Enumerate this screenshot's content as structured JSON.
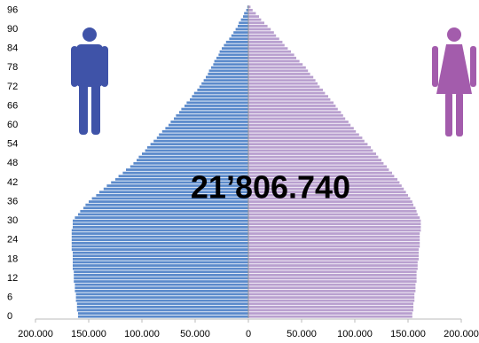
{
  "chart_data": {
    "type": "pyramid",
    "annotation": "21’806.740",
    "categories": [
      "0",
      null,
      null,
      null,
      null,
      null,
      "6",
      null,
      null,
      null,
      null,
      null,
      "12",
      null,
      null,
      null,
      null,
      null,
      "18",
      null,
      null,
      null,
      null,
      null,
      "24",
      null,
      null,
      null,
      null,
      null,
      "30",
      null,
      null,
      null,
      null,
      null,
      "36",
      null,
      null,
      null,
      null,
      null,
      "42",
      null,
      null,
      null,
      null,
      null,
      "48",
      null,
      null,
      null,
      null,
      null,
      "54",
      null,
      null,
      null,
      null,
      null,
      "60",
      null,
      null,
      null,
      null,
      null,
      "66",
      null,
      null,
      null,
      null,
      null,
      "72",
      null,
      null,
      null,
      null,
      null,
      "78",
      null,
      null,
      null,
      null,
      null,
      "84",
      null,
      null,
      null,
      null,
      null,
      "90",
      null,
      null,
      null,
      null,
      null,
      "96",
      null
    ],
    "series": [
      {
        "side": "left",
        "color": "#5b8acb",
        "values": [
          160000,
          160000,
          161000,
          161000,
          161000,
          162000,
          162000,
          162000,
          163000,
          163000,
          163000,
          164000,
          164000,
          164000,
          164000,
          165000,
          165000,
          165000,
          165000,
          165000,
          165000,
          166000,
          166000,
          166000,
          166000,
          166000,
          166000,
          166000,
          165000,
          165000,
          165000,
          163000,
          160000,
          158000,
          155000,
          153000,
          150000,
          147000,
          143000,
          140000,
          136000,
          133000,
          129000,
          125000,
          122000,
          118000,
          115000,
          111000,
          108000,
          105000,
          103000,
          100000,
          97000,
          95000,
          92000,
          89000,
          86000,
          84000,
          81000,
          78000,
          75000,
          73000,
          70000,
          68000,
          65000,
          63000,
          60000,
          58000,
          55000,
          53000,
          51000,
          48000,
          46000,
          44000,
          42000,
          40000,
          38000,
          37000,
          35000,
          33000,
          32000,
          30000,
          28000,
          27000,
          25000,
          23000,
          21000,
          18000,
          16000,
          14000,
          12000,
          10000,
          9000,
          7000,
          5000,
          4000,
          2000,
          1000
        ]
      },
      {
        "side": "right",
        "color": "#b9a0cf",
        "values": [
          154000,
          154000,
          155000,
          155000,
          155000,
          156000,
          156000,
          156000,
          157000,
          157000,
          157000,
          158000,
          158000,
          158000,
          158000,
          159000,
          159000,
          159000,
          160000,
          160000,
          160000,
          160000,
          161000,
          161000,
          161000,
          161000,
          161000,
          162000,
          162000,
          162000,
          162000,
          161000,
          159000,
          158000,
          157000,
          155000,
          154000,
          152000,
          150000,
          148000,
          146000,
          144000,
          142000,
          140000,
          137000,
          135000,
          132000,
          130000,
          127000,
          125000,
          122000,
          120000,
          117000,
          115000,
          112000,
          109000,
          107000,
          104000,
          101000,
          99000,
          96000,
          94000,
          91000,
          89000,
          87000,
          84000,
          82000,
          80000,
          77000,
          75000,
          72000,
          70000,
          67000,
          65000,
          63000,
          61000,
          58000,
          56000,
          54000,
          51000,
          48000,
          45000,
          43000,
          40000,
          37000,
          34000,
          32000,
          29000,
          26000,
          24000,
          21000,
          18000,
          15000,
          12000,
          10000,
          7000,
          4000,
          2000
        ]
      }
    ],
    "xlim": [
      0,
      200000
    ],
    "xticks": [
      0,
      {
        "value": 50000,
        "label": "50.000"
      },
      {
        "value": 100000,
        "label": "100.000"
      },
      {
        "value": 150000,
        "label": "150.000"
      },
      {
        "value": 200000,
        "label": "200.000"
      }
    ]
  }
}
